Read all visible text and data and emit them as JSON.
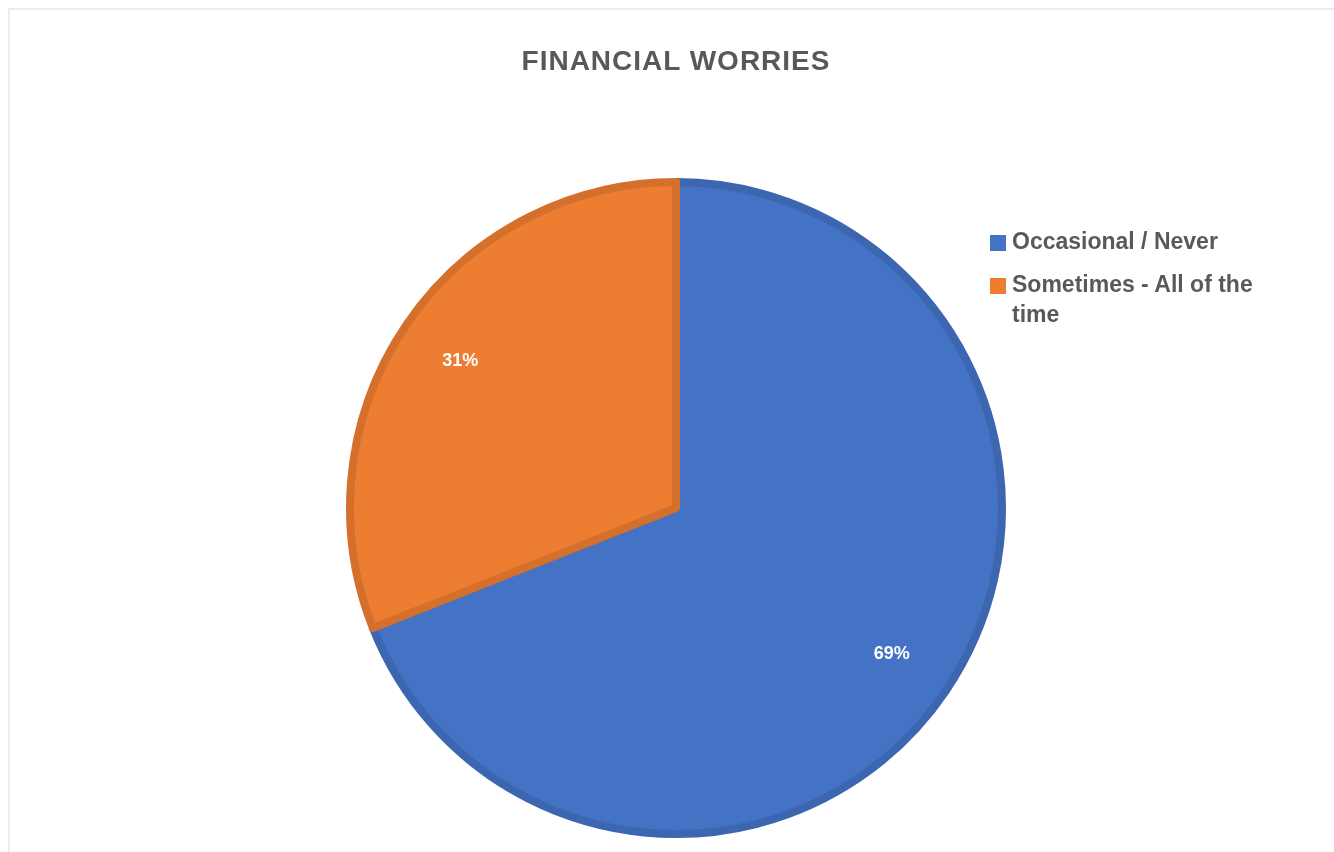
{
  "chart_data": {
    "type": "pie",
    "title": "FINANCIAL WORRIES",
    "categories": [
      "Occasional / Never",
      "Sometimes - All of the time"
    ],
    "values": [
      69,
      31
    ],
    "colors": [
      "#4472c4",
      "#ed7d31"
    ],
    "value_labels": [
      "69%",
      "31%"
    ],
    "legend": "right"
  }
}
